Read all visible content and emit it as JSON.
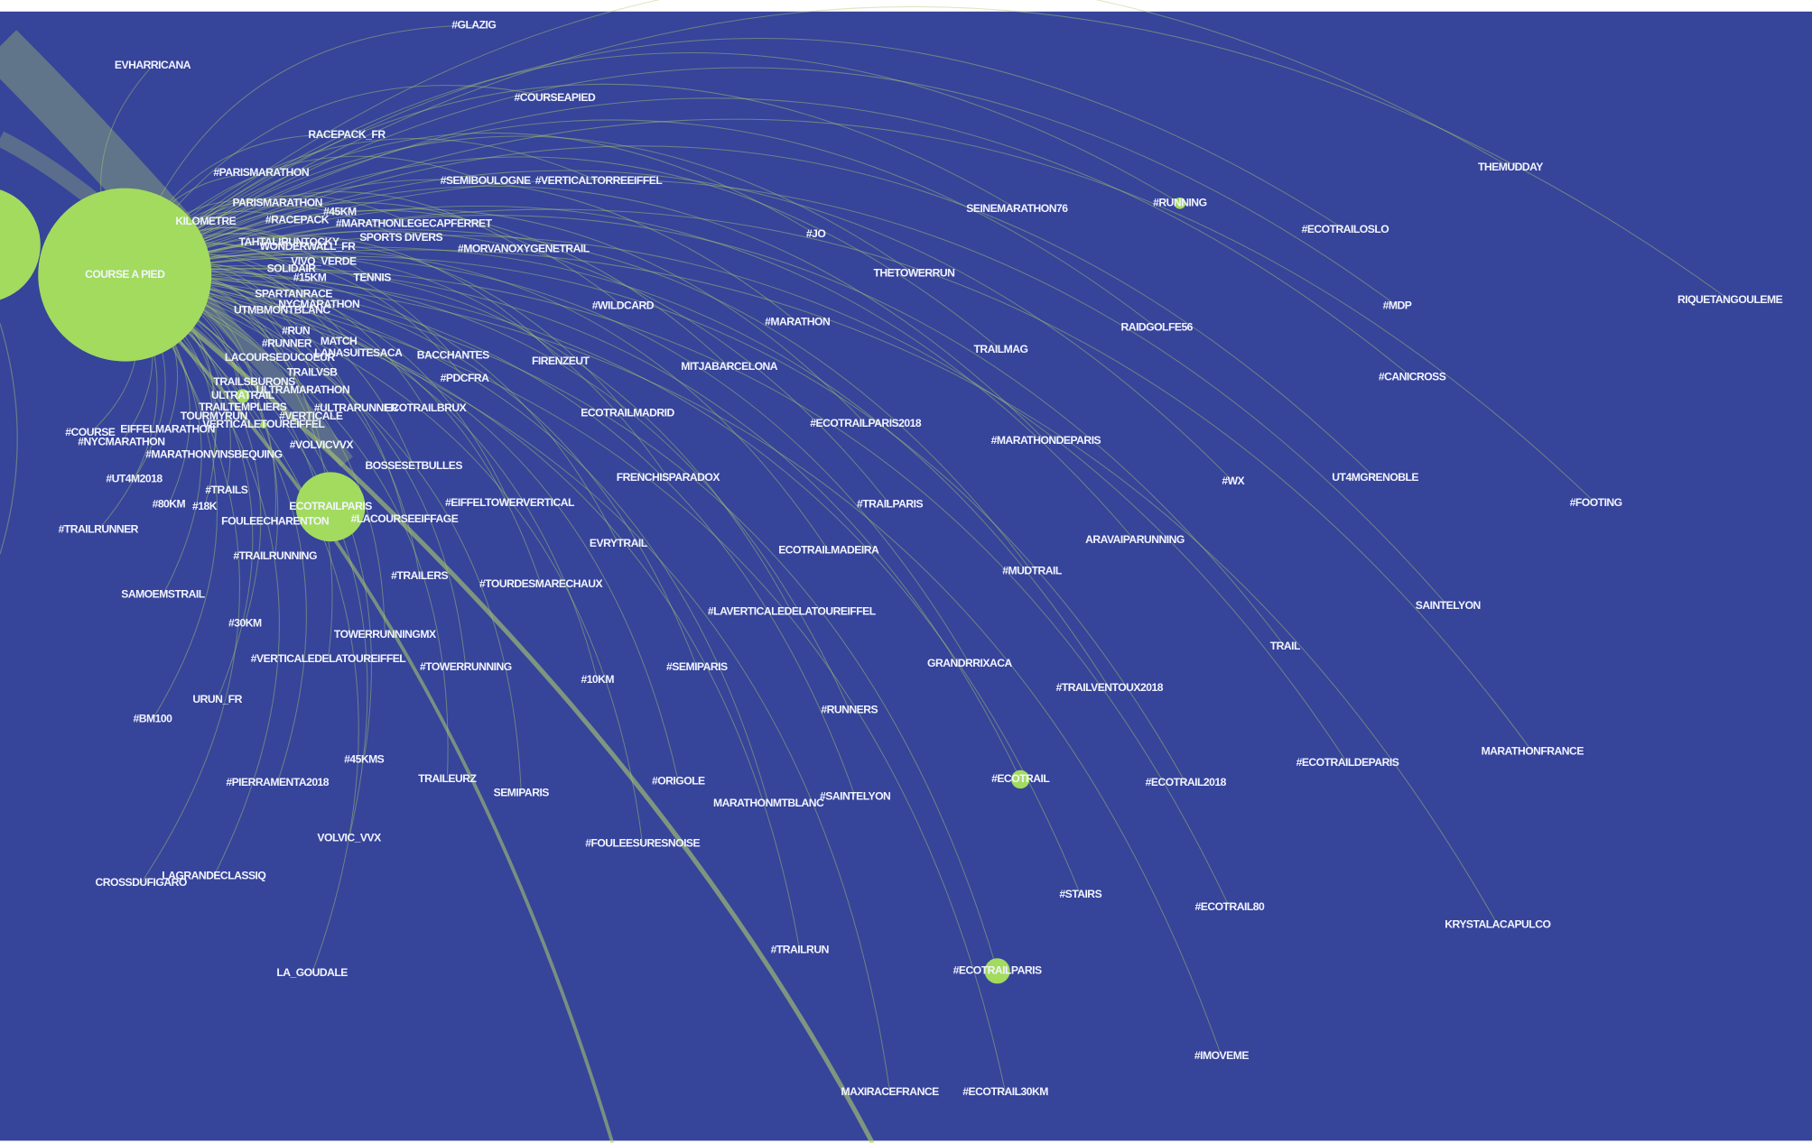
{
  "nodes": [
    {
      "label": "COURSE A PIED"
    },
    {
      "label": "#GLAZIG"
    },
    {
      "label": "EVHARRICANA"
    },
    {
      "label": "#COURSEAPIED"
    },
    {
      "label": "RACEPACK_FR"
    },
    {
      "label": "#PARISMARATHON"
    },
    {
      "label": "#SEMIBOULOGNE"
    },
    {
      "label": "#VERTICALTORREEIFFEL"
    },
    {
      "label": "THEMUDDAY"
    },
    {
      "label": "PARISMARATHON"
    },
    {
      "label": "#RUNNING"
    },
    {
      "label": "SEINEMARATHON76"
    },
    {
      "label": "KILOMETRE"
    },
    {
      "label": "#RACEPACK"
    },
    {
      "label": "#45KM"
    },
    {
      "label": "#MARATHONLEGECAPFERRET"
    },
    {
      "label": "#ECOTRAILOSLO"
    },
    {
      "label": "SPORTS DIVERS"
    },
    {
      "label": "TAHTALIRUNTOCKY"
    },
    {
      "label": "#JO"
    },
    {
      "label": "WONDERWALL_FR"
    },
    {
      "label": "#MORVANOXYGENETRAIL"
    },
    {
      "label": "VIVO_VERDE"
    },
    {
      "label": "SOLIDAIR"
    },
    {
      "label": "#15KM"
    },
    {
      "label": "TENNIS"
    },
    {
      "label": "THETOWERRUN"
    },
    {
      "label": "SPARTANRACE"
    },
    {
      "label": "UTMBMONTBLANC"
    },
    {
      "label": "NYCMARATHON"
    },
    {
      "label": "#WILDCARD"
    },
    {
      "label": "#MDP"
    },
    {
      "label": "RIQUETANGOULEME"
    },
    {
      "label": "#MARATHON"
    },
    {
      "label": "RAIDGOLFE56"
    },
    {
      "label": "#RUN"
    },
    {
      "label": "#RUNNER"
    },
    {
      "label": "MATCH"
    },
    {
      "label": "LANASUITESACA"
    },
    {
      "label": "BACCHANTES"
    },
    {
      "label": "FIRENZEUT"
    },
    {
      "label": "TRAILMAG"
    },
    {
      "label": "MITJABARCELONA"
    },
    {
      "label": "LACOURSEDUCOEUR"
    },
    {
      "label": "TRAILVSB"
    },
    {
      "label": "#PDCFRA"
    },
    {
      "label": "#CANICROSS"
    },
    {
      "label": "TRAILSBURONS"
    },
    {
      "label": "ULTRAMARATHON"
    },
    {
      "label": "ULTRATRAIL"
    },
    {
      "label": "TRAILTEMPLIERS"
    },
    {
      "label": "#ULTRARUNNER"
    },
    {
      "label": "ECOTRAILBRUX"
    },
    {
      "label": "ECOTRAILMADRID"
    },
    {
      "label": "TOURMYRUN"
    },
    {
      "label": "#VERTICALE"
    },
    {
      "label": "#ECOTRAILPARIS2018"
    },
    {
      "label": "VERTICALETOUREIFFEL"
    },
    {
      "label": "#COURSE"
    },
    {
      "label": "EIFFELMARATHON"
    },
    {
      "label": "#NYCMARATHON"
    },
    {
      "label": "#MARATHONDEPARIS"
    },
    {
      "label": "#VOLVICVVX"
    },
    {
      "label": "#MARATHONVINSBEQUING"
    },
    {
      "label": "BOSSESETBULLES"
    },
    {
      "label": "#UT4M2018"
    },
    {
      "label": "FRENCHISPARADOX"
    },
    {
      "label": "#WX"
    },
    {
      "label": "UT4MGRENOBLE"
    },
    {
      "label": "#TRAILS"
    },
    {
      "label": "#80KM"
    },
    {
      "label": "#18K"
    },
    {
      "label": "ECOTRAILPARIS"
    },
    {
      "label": "#EIFFELTOWERVERTICAL"
    },
    {
      "label": "#TRAILPARIS"
    },
    {
      "label": "#FOOTING"
    },
    {
      "label": "FOULEECHARENTON"
    },
    {
      "label": "#LACOURSEEIFFAGE"
    },
    {
      "label": "#TRAILRUNNER"
    },
    {
      "label": "ARAVAIPARUNNING"
    },
    {
      "label": "EVRYTRAIL"
    },
    {
      "label": "ECOTRAILMADEIRA"
    },
    {
      "label": "#TRAILRUNNING"
    },
    {
      "label": "#MUDTRAIL"
    },
    {
      "label": "#TRAILERS"
    },
    {
      "label": "#TOURDESMARECHAUX"
    },
    {
      "label": "SAMOEMSTRAIL"
    },
    {
      "label": "SAINTELYON"
    },
    {
      "label": "#LAVERTICALEDELATOUREIFFEL"
    },
    {
      "label": "#30KM"
    },
    {
      "label": "TOWERRUNNINGMX"
    },
    {
      "label": "TRAIL"
    },
    {
      "label": "#VERTICALEDELATOUREIFFEL"
    },
    {
      "label": "#TOWERRUNNING"
    },
    {
      "label": "#SEMIPARIS"
    },
    {
      "label": "GRANDRRIXACA"
    },
    {
      "label": "#10KM"
    },
    {
      "label": "#TRAILVENTOUX2018"
    },
    {
      "label": "URUN_FR"
    },
    {
      "label": "#RUNNERS"
    },
    {
      "label": "#BM100"
    },
    {
      "label": "MARATHONFRANCE"
    },
    {
      "label": "#45KMS"
    },
    {
      "label": "#ECOTRAILDEPARIS"
    },
    {
      "label": "#ECOTRAIL"
    },
    {
      "label": "#ORIGOLE"
    },
    {
      "label": "#ECOTRAIL2018"
    },
    {
      "label": "TRAILEURZ"
    },
    {
      "label": "#PIERRAMENTA2018"
    },
    {
      "label": "SEMIPARIS"
    },
    {
      "label": "MARATHONMTBLANC"
    },
    {
      "label": "#SAINTELYON"
    },
    {
      "label": "VOLVIC_VVX"
    },
    {
      "label": "#FOULEESURESNOISE"
    },
    {
      "label": "LAGRANDECLASSIQ"
    },
    {
      "label": "CROSSDUFIGARO"
    },
    {
      "label": "#STAIRS"
    },
    {
      "label": "#ECOTRAIL80"
    },
    {
      "label": "KRYSTALACAPULCO"
    },
    {
      "label": "#TRAILRUN"
    },
    {
      "label": "#ECOTRAILPARIS"
    },
    {
      "label": "LA_GOUDALE"
    },
    {
      "label": "#IMOVEME"
    },
    {
      "label": "MAXIRACEFRANCE"
    },
    {
      "label": "#ECOTRAIL30KM"
    }
  ]
}
